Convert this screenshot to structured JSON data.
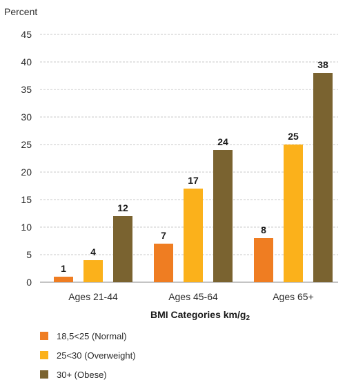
{
  "chart_data": {
    "type": "bar",
    "title": "",
    "ylabel": "Percent",
    "xlabel": "BMI Categories km/g",
    "xlabel_sub": "2",
    "ylim": [
      0,
      45
    ],
    "yticks": [
      0,
      5,
      10,
      15,
      20,
      25,
      30,
      35,
      40,
      45
    ],
    "grid": "horizontal",
    "legend_position": "bottom-left",
    "categories": [
      "Ages 21-44",
      "Ages 45-64",
      "Ages 65+"
    ],
    "series": [
      {
        "name": "18,5<25 (Normal)",
        "color": "#ef7d22",
        "values": [
          1,
          7,
          8
        ]
      },
      {
        "name": "25<30 (Overweight)",
        "color": "#fbb11b",
        "values": [
          4,
          17,
          25
        ]
      },
      {
        "name": "30+ (Obese)",
        "color": "#7a6330",
        "values": [
          12,
          24,
          38
        ]
      }
    ]
  }
}
